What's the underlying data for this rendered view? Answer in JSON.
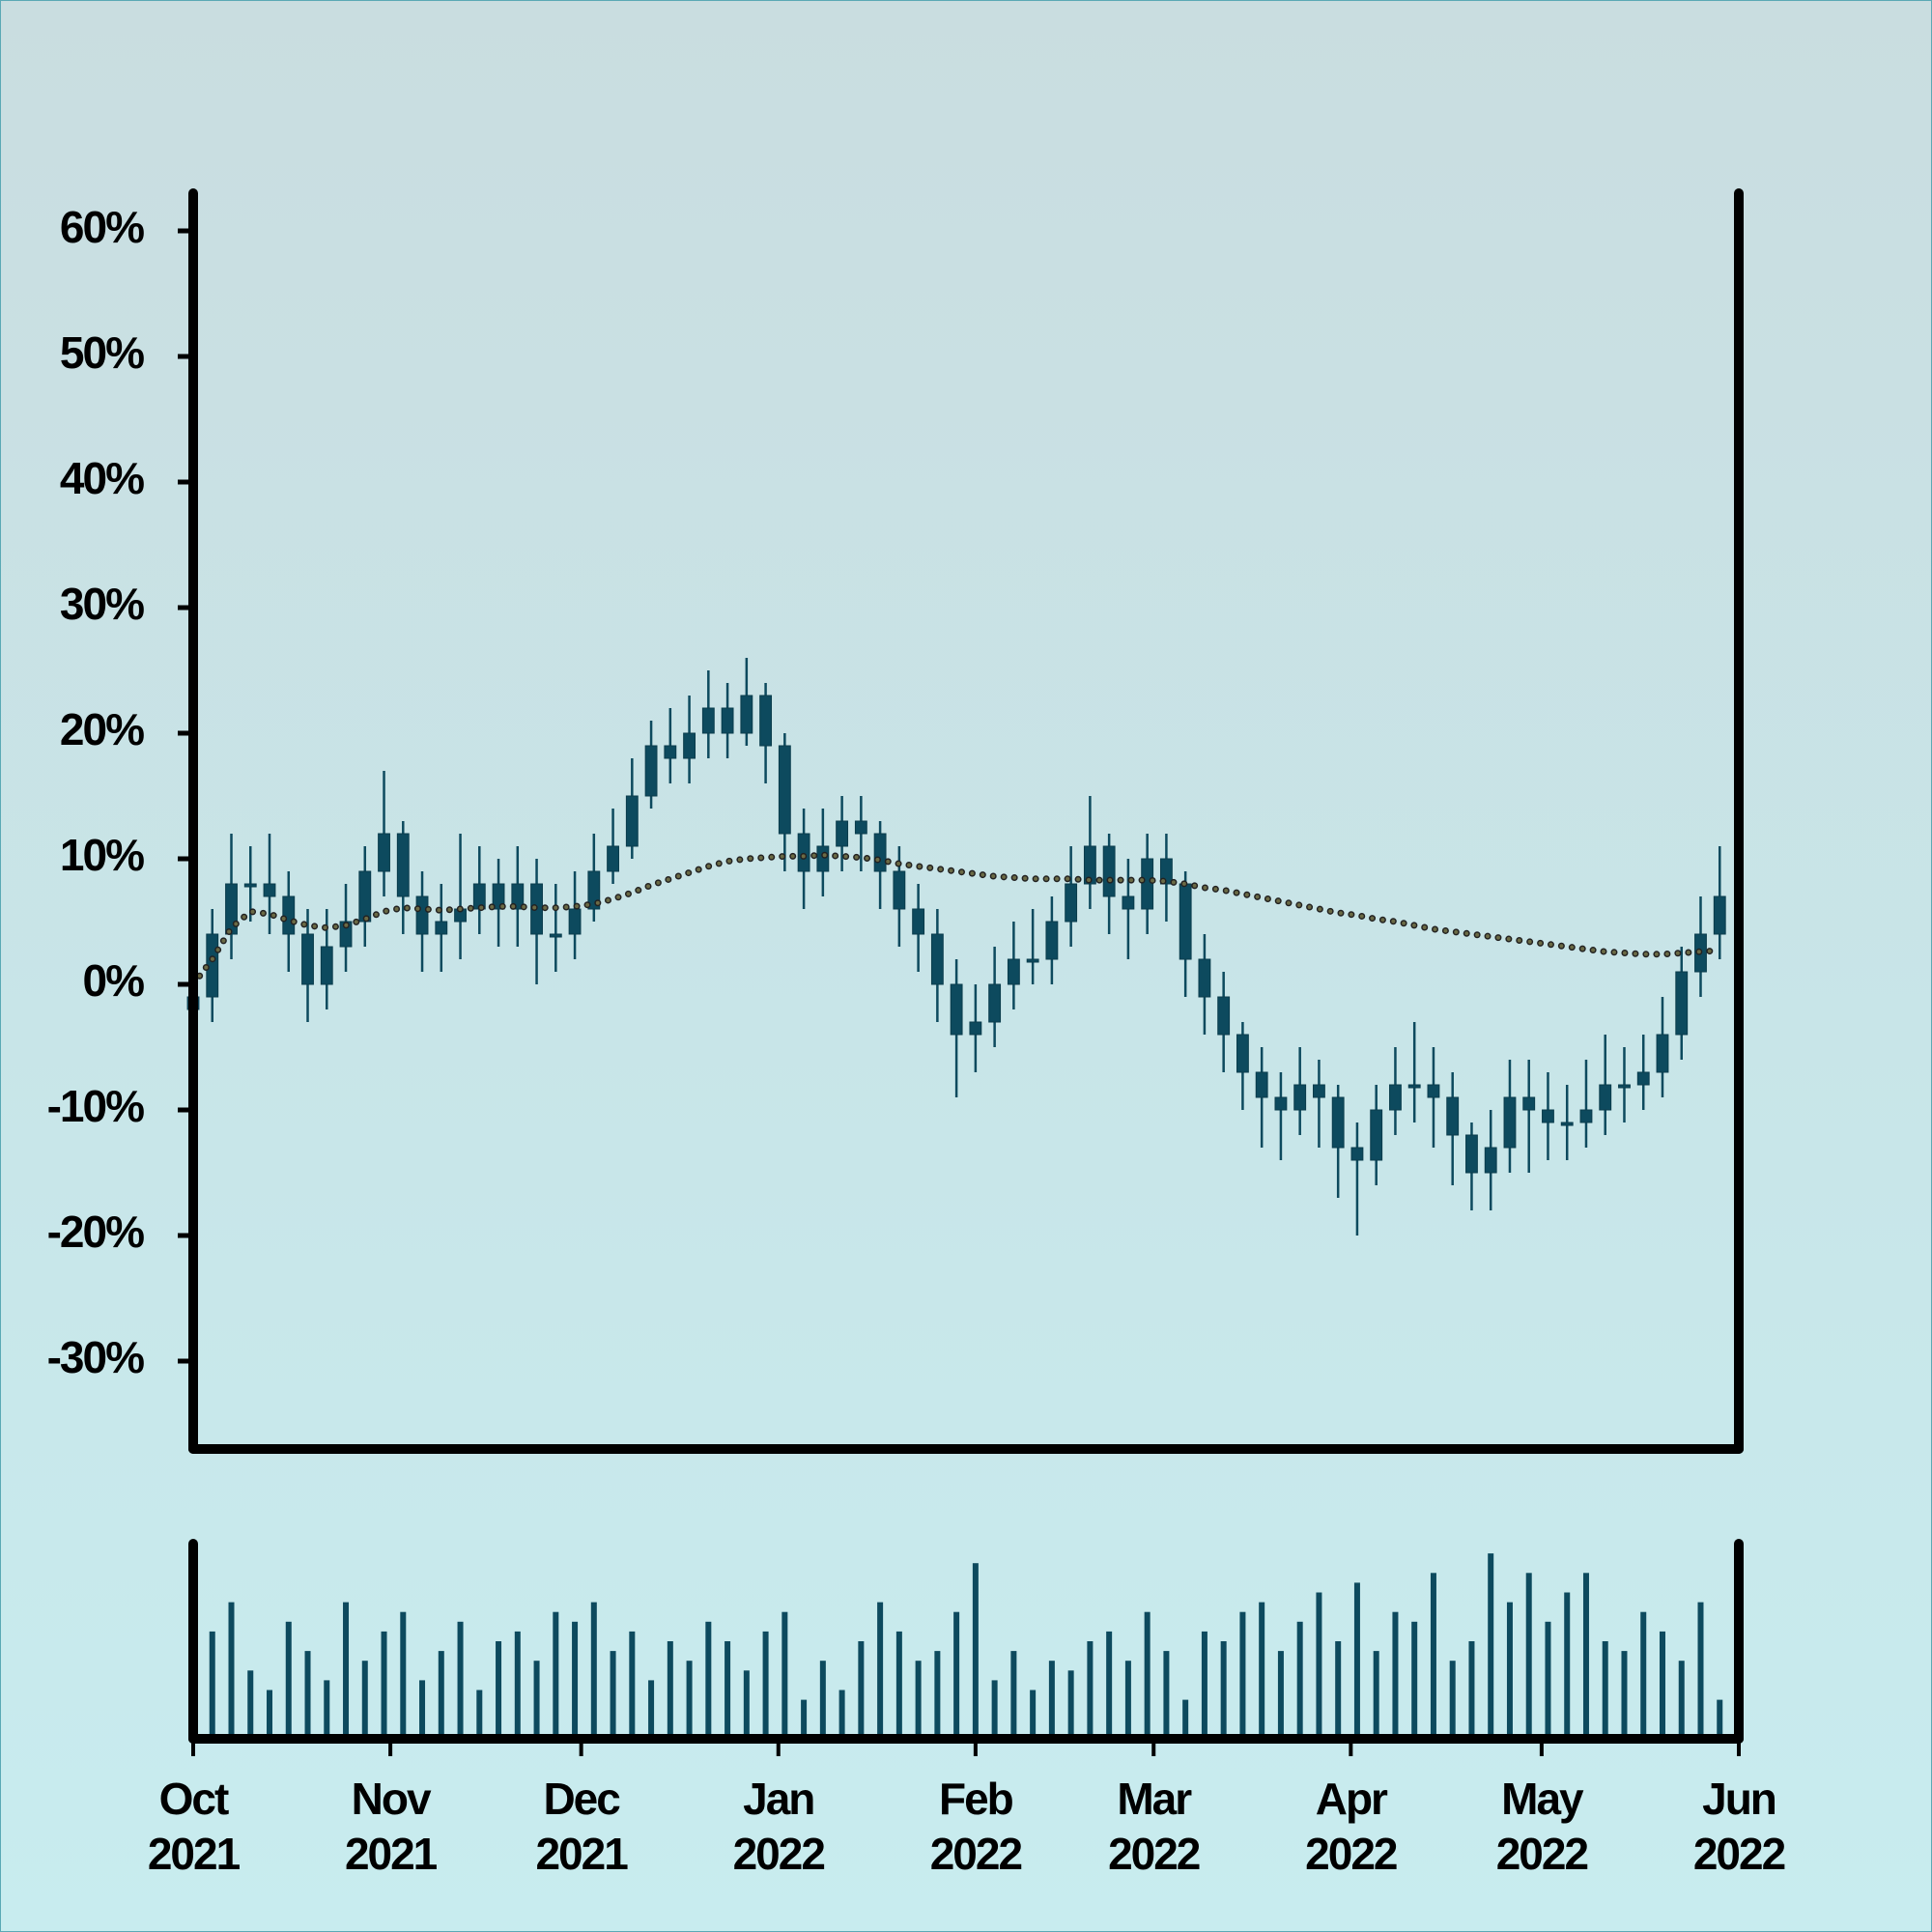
{
  "chart_data": {
    "type": "candlestick",
    "color": "#0d4a5e",
    "xlim": [
      0,
      243
    ],
    "xticks": [
      {
        "value": 0,
        "label": [
          "Oct",
          "2021"
        ]
      },
      {
        "value": 31,
        "label": [
          "Nov",
          "2021"
        ]
      },
      {
        "value": 61,
        "label": [
          "Dec",
          "2021"
        ]
      },
      {
        "value": 92,
        "label": [
          "Jan",
          "2022"
        ]
      },
      {
        "value": 123,
        "label": [
          "Feb",
          "2022"
        ]
      },
      {
        "value": 151,
        "label": [
          "Mar",
          "2022"
        ]
      },
      {
        "value": 182,
        "label": [
          "Apr",
          "2022"
        ]
      },
      {
        "value": 212,
        "label": [
          "May",
          "2022"
        ]
      },
      {
        "value": 243,
        "label": [
          "Jun",
          "2022"
        ]
      }
    ],
    "ylim": [
      -37,
      63
    ],
    "yticks": [
      {
        "value": -30,
        "label": "-30%"
      },
      {
        "value": -20,
        "label": "-20%"
      },
      {
        "value": -10,
        "label": "-10%"
      },
      {
        "value": 0,
        "label": "0%"
      },
      {
        "value": 10,
        "label": "10%"
      },
      {
        "value": 20,
        "label": "20%"
      },
      {
        "value": 30,
        "label": "30%"
      },
      {
        "value": 40,
        "label": "40%"
      },
      {
        "value": 50,
        "label": "50%"
      },
      {
        "value": 60,
        "label": "60%"
      }
    ],
    "x": [
      0,
      3,
      6,
      9,
      12,
      15,
      18,
      21,
      24,
      27,
      30,
      33,
      36,
      39,
      42,
      45,
      48,
      51,
      54,
      57,
      60,
      63,
      66,
      69,
      72,
      75,
      78,
      81,
      84,
      87,
      90,
      93,
      96,
      99,
      102,
      105,
      108,
      111,
      114,
      117,
      120,
      123,
      126,
      129,
      132,
      135,
      138,
      141,
      144,
      147,
      150,
      153,
      156,
      159,
      162,
      165,
      168,
      171,
      174,
      177,
      180,
      183,
      186,
      189,
      192,
      195,
      198,
      201,
      204,
      207,
      210,
      213,
      216,
      219,
      222,
      225,
      228,
      231,
      234,
      237,
      240
    ],
    "open": [
      -2,
      -1,
      4,
      8,
      8,
      7,
      4,
      0,
      3,
      5,
      9,
      12,
      7,
      4,
      5,
      6,
      8,
      6,
      8,
      4,
      4,
      6,
      9,
      11,
      15,
      19,
      18,
      20,
      22,
      20,
      23,
      19,
      12,
      9,
      11,
      13,
      12,
      9,
      6,
      4,
      0,
      -4,
      -3,
      0,
      2,
      2,
      5,
      8,
      11,
      7,
      6,
      10,
      8,
      2,
      -1,
      -4,
      -7,
      -9,
      -10,
      -8,
      -9,
      -13,
      -14,
      -10,
      -8,
      -8,
      -9,
      -12,
      -15,
      -13,
      -9,
      -10,
      -11,
      -11,
      -10,
      -8,
      -8,
      -7,
      -4,
      1,
      4
    ],
    "high": [
      2,
      6,
      12,
      11,
      12,
      9,
      6,
      6,
      8,
      11,
      17,
      13,
      9,
      8,
      12,
      11,
      10,
      11,
      10,
      8,
      9,
      12,
      14,
      18,
      21,
      22,
      23,
      25,
      24,
      26,
      24,
      20,
      14,
      14,
      15,
      15,
      13,
      11,
      8,
      6,
      2,
      0,
      3,
      5,
      6,
      7,
      11,
      15,
      12,
      10,
      12,
      12,
      9,
      4,
      1,
      -3,
      -5,
      -7,
      -5,
      -6,
      -8,
      -11,
      -8,
      -5,
      -3,
      -5,
      -7,
      -11,
      -10,
      -6,
      -6,
      -7,
      -8,
      -6,
      -4,
      -5,
      -4,
      -1,
      3,
      7,
      11
    ],
    "low": [
      -5,
      -3,
      2,
      5,
      4,
      1,
      -3,
      -2,
      1,
      3,
      7,
      4,
      1,
      1,
      2,
      4,
      3,
      3,
      0,
      1,
      2,
      5,
      8,
      10,
      14,
      16,
      16,
      18,
      18,
      19,
      16,
      9,
      6,
      7,
      9,
      9,
      6,
      3,
      1,
      -3,
      -9,
      -7,
      -5,
      -2,
      0,
      0,
      3,
      6,
      4,
      2,
      4,
      5,
      -1,
      -4,
      -7,
      -10,
      -13,
      -14,
      -12,
      -13,
      -17,
      -20,
      -16,
      -12,
      -11,
      -13,
      -16,
      -18,
      -18,
      -15,
      -15,
      -14,
      -14,
      -13,
      -12,
      -11,
      -10,
      -9,
      -6,
      -1,
      2
    ],
    "close": [
      -1,
      4,
      8,
      8,
      7,
      4,
      0,
      3,
      5,
      9,
      12,
      7,
      4,
      5,
      6,
      8,
      6,
      8,
      4,
      4,
      6,
      9,
      11,
      15,
      19,
      18,
      20,
      22,
      20,
      23,
      19,
      12,
      9,
      11,
      13,
      12,
      9,
      6,
      4,
      0,
      -4,
      -3,
      0,
      2,
      2,
      5,
      8,
      11,
      7,
      6,
      10,
      8,
      2,
      -1,
      -4,
      -7,
      -9,
      -10,
      -8,
      -9,
      -13,
      -14,
      -10,
      -8,
      -8,
      -9,
      -12,
      -15,
      -13,
      -9,
      -10,
      -11,
      -11,
      -10,
      -8,
      -8,
      -7,
      -4,
      1,
      4,
      7
    ],
    "moving_average": {
      "color": "#6b6a45",
      "values": [
        0,
        2,
        4.5,
        5.8,
        5.6,
        5.1,
        4.7,
        4.5,
        4.7,
        5.2,
        5.8,
        6.1,
        6,
        5.9,
        6,
        6.1,
        6.2,
        6.2,
        6.1,
        6.1,
        6.2,
        6.4,
        6.8,
        7.3,
        7.9,
        8.4,
        8.9,
        9.4,
        9.8,
        10,
        10.1,
        10.2,
        10.2,
        10.3,
        10.2,
        10.1,
        9.9,
        9.6,
        9.4,
        9.2,
        9,
        8.8,
        8.6,
        8.5,
        8.4,
        8.4,
        8.4,
        8.3,
        8.3,
        8.3,
        8.3,
        8.2,
        8,
        7.7,
        7.5,
        7.2,
        6.9,
        6.6,
        6.3,
        6,
        5.7,
        5.5,
        5.2,
        5,
        4.7,
        4.4,
        4.2,
        4,
        3.8,
        3.6,
        3.4,
        3.2,
        3,
        2.8,
        2.6,
        2.5,
        2.4,
        2.4,
        2.5,
        2.6,
        2.7
      ]
    },
    "volume": {
      "ylim": [
        0,
        100
      ],
      "values": [
        80,
        55,
        70,
        35,
        25,
        60,
        45,
        30,
        70,
        40,
        55,
        65,
        30,
        45,
        60,
        25,
        50,
        55,
        40,
        65,
        60,
        70,
        45,
        55,
        30,
        50,
        40,
        60,
        50,
        35,
        55,
        65,
        20,
        40,
        25,
        50,
        70,
        55,
        40,
        45,
        65,
        90,
        30,
        45,
        25,
        40,
        35,
        50,
        55,
        40,
        65,
        45,
        20,
        55,
        50,
        65,
        70,
        45,
        60,
        75,
        50,
        80,
        45,
        65,
        60,
        85,
        40,
        50,
        95,
        70,
        85,
        60,
        75,
        85,
        50,
        45,
        65,
        55,
        40,
        70,
        20
      ]
    }
  }
}
